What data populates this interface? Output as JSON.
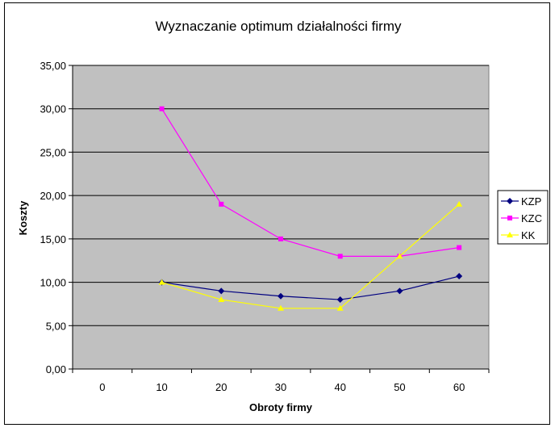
{
  "chart_data": {
    "type": "line",
    "title": "Wyznaczanie optimum działalności firmy",
    "xlabel": "Obroty firmy",
    "ylabel": "Koszty",
    "categories": [
      "0",
      "10",
      "20",
      "30",
      "40",
      "50",
      "60"
    ],
    "ylim": [
      0,
      35
    ],
    "yticks": [
      "0,00",
      "5,00",
      "10,00",
      "15,00",
      "20,00",
      "25,00",
      "30,00",
      "35,00"
    ],
    "grid": true,
    "legend_position": "right",
    "series": [
      {
        "name": "KZP",
        "color": "#000080",
        "marker": "diamond",
        "values": [
          null,
          10.0,
          9.0,
          8.4,
          8.0,
          9.0,
          10.7
        ]
      },
      {
        "name": "KZC",
        "color": "#FF00FF",
        "marker": "square",
        "values": [
          null,
          30.0,
          19.0,
          15.0,
          13.0,
          13.0,
          14.0
        ]
      },
      {
        "name": "KK",
        "color": "#FFFF00",
        "marker": "triangle",
        "values": [
          null,
          10.0,
          8.0,
          7.0,
          7.0,
          13.0,
          19.0
        ]
      }
    ],
    "plot_background": "#C0C0C0"
  }
}
